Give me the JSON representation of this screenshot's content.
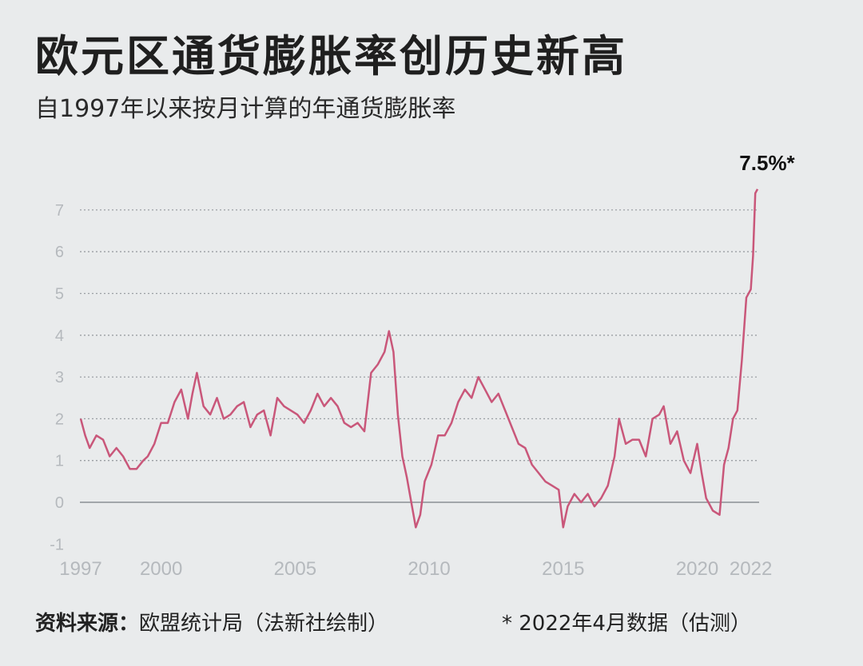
{
  "title": "欧元区通货膨胀率创历史新高",
  "subtitle": "自1997年以来按月计算的年通货膨胀率",
  "source_label": "资料来源：",
  "source_text": "欧盟统计局（法新社绘制）",
  "footnote": "* 2022年4月数据（估测）",
  "colors": {
    "line": "#c9577a",
    "background": "#e9ebec",
    "grid": "#9a9fa3",
    "zero": "#8a8f93",
    "tick": "#b5b9bd"
  },
  "chart_data": {
    "type": "line",
    "title": "欧元区通货膨胀率创历史新高",
    "subtitle": "自1997年以来按月计算的年通货膨胀率",
    "x_tick_labels": [
      "1997",
      "2000",
      "2005",
      "2010",
      "2015",
      "2020",
      "2022"
    ],
    "y_ticks": [
      -1,
      0,
      1,
      2,
      3,
      4,
      5,
      6,
      7
    ],
    "ylim": [
      -1,
      7.5
    ],
    "xlim": [
      "1997-01",
      "2022-04"
    ],
    "grid": "horizontal dotted",
    "annotation": "7.5%*",
    "series": [
      {
        "x": [
          "1997-01",
          "1997-03",
          "1997-05",
          "1997-08",
          "1997-11",
          "1998-02",
          "1998-05",
          "1998-08",
          "1998-11",
          "1999-02",
          "1999-05",
          "1999-07",
          "1999-10",
          "2000-01",
          "2000-04",
          "2000-07",
          "2000-10",
          "2001-01",
          "2001-03",
          "2001-05",
          "2001-08",
          "2001-11",
          "2002-02",
          "2002-05",
          "2002-08",
          "2002-11",
          "2003-02",
          "2003-05",
          "2003-08",
          "2003-11",
          "2004-02",
          "2004-05",
          "2004-08",
          "2004-11",
          "2005-02",
          "2005-05",
          "2005-08",
          "2005-11",
          "2006-02",
          "2006-05",
          "2006-08",
          "2006-11",
          "2007-02",
          "2007-05",
          "2007-08",
          "2007-11",
          "2008-02",
          "2008-05",
          "2008-07",
          "2008-09",
          "2008-11",
          "2009-01",
          "2009-03",
          "2009-05",
          "2009-07",
          "2009-09",
          "2009-11",
          "2010-02",
          "2010-05",
          "2010-08",
          "2010-11",
          "2011-02",
          "2011-05",
          "2011-08",
          "2011-11",
          "2012-02",
          "2012-05",
          "2012-08",
          "2012-11",
          "2013-02",
          "2013-05",
          "2013-08",
          "2013-11",
          "2014-02",
          "2014-05",
          "2014-08",
          "2014-11",
          "2015-01",
          "2015-03",
          "2015-06",
          "2015-09",
          "2015-12",
          "2016-03",
          "2016-06",
          "2016-09",
          "2016-12",
          "2017-02",
          "2017-05",
          "2017-08",
          "2017-11",
          "2018-02",
          "2018-05",
          "2018-08",
          "2018-10",
          "2019-01",
          "2019-04",
          "2019-07",
          "2019-10",
          "2020-01",
          "2020-03",
          "2020-05",
          "2020-08",
          "2020-11",
          "2021-01",
          "2021-03",
          "2021-05",
          "2021-07",
          "2021-09",
          "2021-11",
          "2022-01",
          "2022-02",
          "2022-03",
          "2022-04"
        ],
        "values": [
          2.0,
          1.6,
          1.3,
          1.6,
          1.5,
          1.1,
          1.3,
          1.1,
          0.8,
          0.8,
          1.0,
          1.1,
          1.4,
          1.9,
          1.9,
          2.4,
          2.7,
          2.0,
          2.6,
          3.1,
          2.3,
          2.1,
          2.5,
          2.0,
          2.1,
          2.3,
          2.4,
          1.8,
          2.1,
          2.2,
          1.6,
          2.5,
          2.3,
          2.2,
          2.1,
          1.9,
          2.2,
          2.6,
          2.3,
          2.5,
          2.3,
          1.9,
          1.8,
          1.9,
          1.7,
          3.1,
          3.3,
          3.6,
          4.1,
          3.6,
          2.1,
          1.1,
          0.6,
          0.0,
          -0.6,
          -0.3,
          0.5,
          0.9,
          1.6,
          1.6,
          1.9,
          2.4,
          2.7,
          2.5,
          3.0,
          2.7,
          2.4,
          2.6,
          2.2,
          1.8,
          1.4,
          1.3,
          0.9,
          0.7,
          0.5,
          0.4,
          0.3,
          -0.6,
          -0.1,
          0.2,
          0.0,
          0.2,
          -0.1,
          0.1,
          0.4,
          1.1,
          2.0,
          1.4,
          1.5,
          1.5,
          1.1,
          2.0,
          2.1,
          2.3,
          1.4,
          1.7,
          1.0,
          0.7,
          1.4,
          0.7,
          0.1,
          -0.2,
          -0.3,
          0.9,
          1.3,
          2.0,
          2.2,
          3.4,
          4.9,
          5.1,
          5.9,
          7.4,
          7.5
        ]
      }
    ]
  }
}
